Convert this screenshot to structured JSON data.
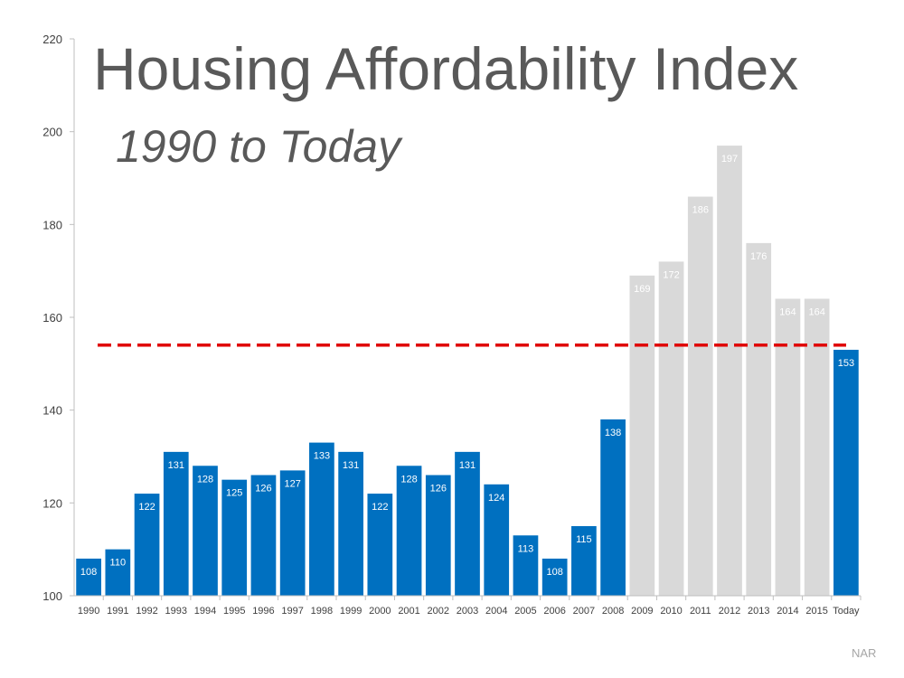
{
  "chart_data": {
    "type": "bar",
    "title": "Housing Affordability Index",
    "subtitle": "1990 to Today",
    "source": "NAR",
    "xlabel": "",
    "ylabel": "",
    "ylim": [
      100,
      220
    ],
    "yticks": [
      "100",
      "120",
      "140",
      "160",
      "180",
      "200",
      "220"
    ],
    "categories": [
      "1990",
      "1991",
      "1992",
      "1993",
      "1994",
      "1995",
      "1996",
      "1997",
      "1998",
      "1999",
      "2000",
      "2001",
      "2002",
      "2003",
      "2004",
      "2005",
      "2006",
      "2007",
      "2008",
      "2009",
      "2010",
      "2011",
      "2012",
      "2013",
      "2014",
      "2015",
      "Today"
    ],
    "values": [
      108,
      110,
      122,
      131,
      128,
      125,
      126,
      127,
      133,
      131,
      122,
      128,
      126,
      131,
      124,
      113,
      108,
      115,
      138,
      169,
      172,
      186,
      197,
      176,
      164,
      164,
      153
    ],
    "bar_colors": [
      "#0070c0",
      "#0070c0",
      "#0070c0",
      "#0070c0",
      "#0070c0",
      "#0070c0",
      "#0070c0",
      "#0070c0",
      "#0070c0",
      "#0070c0",
      "#0070c0",
      "#0070c0",
      "#0070c0",
      "#0070c0",
      "#0070c0",
      "#0070c0",
      "#0070c0",
      "#0070c0",
      "#0070c0",
      "#d9d9d9",
      "#d9d9d9",
      "#d9d9d9",
      "#d9d9d9",
      "#d9d9d9",
      "#d9d9d9",
      "#d9d9d9",
      "#0070c0"
    ],
    "reference_line": {
      "value": 154,
      "color": "#e00000",
      "style": "dashed"
    },
    "colors": {
      "axis": "#bfbfbf",
      "tick_text": "#404040",
      "data_label": "#ffffff"
    }
  }
}
